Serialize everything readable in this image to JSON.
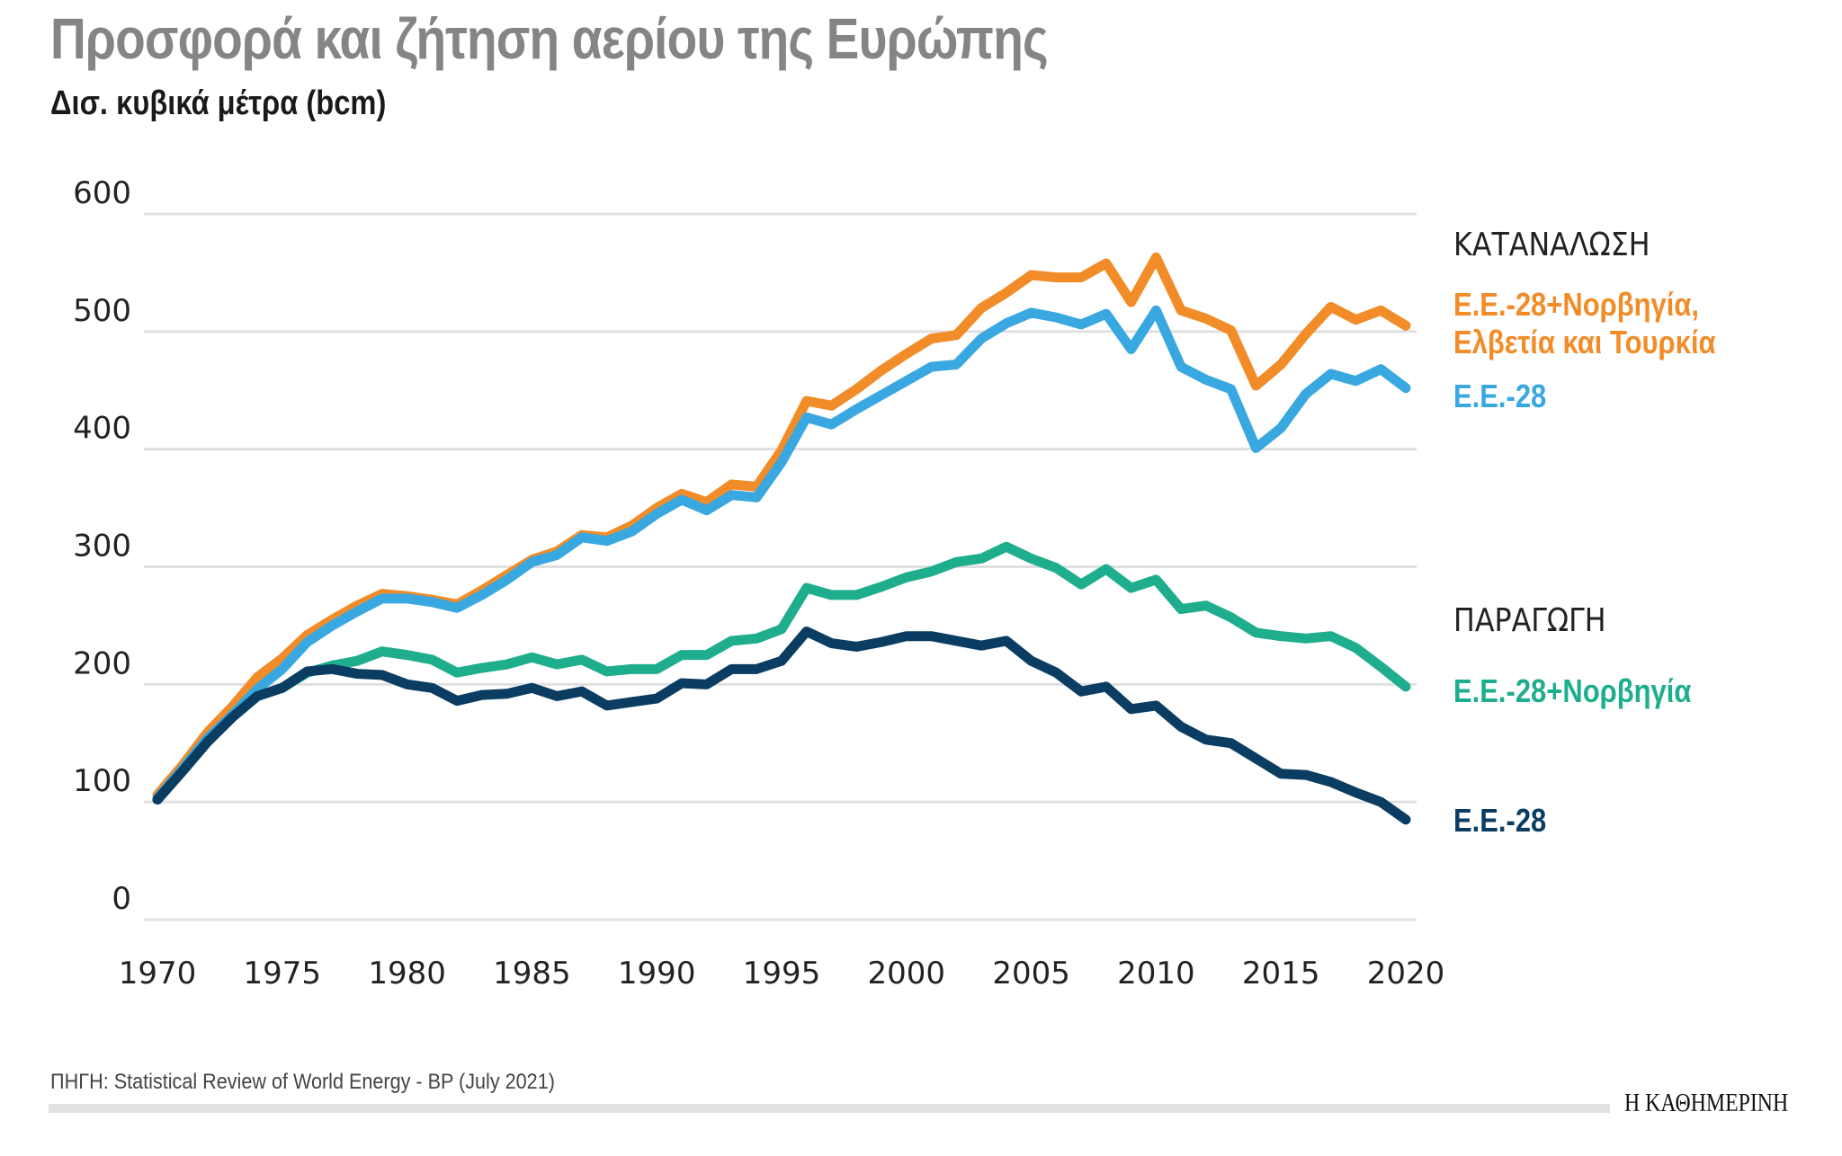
{
  "title": "Προσφορά και ζήτηση αερίου της Ευρώπης",
  "subtitle": "Δισ. κυβικά μέτρα (bcm)",
  "source": "ΠΗΓΗ: Statistical Review of World Energy - BP (July 2021)",
  "logo": "Η ΚΑΘΗΜΕΡΙΝΗ",
  "chart_data": {
    "type": "line",
    "title": "Προσφορά και ζήτηση αερίου της Ευρώπης",
    "ylabel": "Δισ. κυβικά μέτρα (bcm)",
    "xlim": [
      1970,
      2020
    ],
    "ylim": [
      0,
      600
    ],
    "yticks": [
      0,
      100,
      200,
      300,
      400,
      500,
      600
    ],
    "xticks": [
      1970,
      1975,
      1980,
      1985,
      1990,
      1995,
      2000,
      2005,
      2010,
      2015,
      2020
    ],
    "grid": "horizontal",
    "legend": "right",
    "groups": {
      "consumption": "ΚΑΤΑΝΑΛΩΣΗ",
      "production": "ΠΑΡΑΓΩΓΗ"
    },
    "x": [
      1970,
      1971,
      1972,
      1973,
      1974,
      1975,
      1976,
      1977,
      1978,
      1979,
      1980,
      1981,
      1982,
      1983,
      1984,
      1985,
      1986,
      1987,
      1988,
      1989,
      1990,
      1991,
      1992,
      1993,
      1994,
      1995,
      1996,
      1997,
      1998,
      1999,
      2000,
      2001,
      2002,
      2003,
      2004,
      2005,
      2006,
      2007,
      2008,
      2009,
      2010,
      2011,
      2012,
      2013,
      2014,
      2015,
      2016,
      2017,
      2018,
      2019,
      2020
    ],
    "series": [
      {
        "name": "Ε.Ε.-28+Νορβηγία, Ελβετία και Τουρκία",
        "name_lines": [
          "Ε.Ε.-28+Νορβηγία,",
          "Ελβετία και Τουρκία"
        ],
        "group": "consumption",
        "color": "#f28c28",
        "values": [
          106,
          131,
          159,
          181,
          206,
          222,
          242,
          255,
          267,
          277,
          275,
          272,
          268,
          280,
          293,
          306,
          313,
          327,
          325,
          335,
          350,
          362,
          355,
          370,
          368,
          399,
          441,
          437,
          451,
          467,
          481,
          494,
          497,
          520,
          533,
          548,
          546,
          546,
          558,
          525,
          563,
          518,
          511,
          501,
          454,
          472,
          498,
          521,
          510,
          518,
          505
        ]
      },
      {
        "name": "Ε.Ε.-28",
        "group": "consumption",
        "color": "#3aa8e0",
        "values": [
          103,
          128,
          154,
          174,
          196,
          213,
          236,
          250,
          262,
          273,
          273,
          270,
          265,
          276,
          289,
          304,
          310,
          325,
          322,
          330,
          345,
          357,
          348,
          361,
          359,
          389,
          427,
          421,
          434,
          446,
          458,
          470,
          472,
          494,
          507,
          516,
          512,
          506,
          515,
          485,
          518,
          470,
          459,
          451,
          401,
          418,
          447,
          464,
          458,
          468,
          452
        ]
      },
      {
        "name": "Ε.Ε.-28+Νορβηγία",
        "group": "production",
        "color": "#1fae8d",
        "values": [
          102,
          126,
          151,
          172,
          190,
          197,
          210,
          216,
          220,
          228,
          225,
          221,
          210,
          214,
          217,
          223,
          217,
          221,
          211,
          213,
          213,
          225,
          225,
          237,
          239,
          247,
          282,
          276,
          276,
          283,
          291,
          296,
          304,
          307,
          317,
          307,
          299,
          285,
          298,
          282,
          289,
          264,
          267,
          257,
          244,
          241,
          239,
          241,
          231,
          215,
          198
        ]
      },
      {
        "name": "Ε.Ε.-28",
        "group": "production",
        "color": "#0b3d62",
        "values": [
          102,
          126,
          151,
          172,
          190,
          197,
          211,
          213,
          209,
          208,
          200,
          197,
          186,
          191,
          192,
          197,
          190,
          194,
          182,
          185,
          188,
          201,
          200,
          213,
          213,
          220,
          245,
          235,
          232,
          236,
          241,
          241,
          237,
          233,
          237,
          220,
          210,
          194,
          198,
          179,
          182,
          164,
          153,
          150,
          137,
          124,
          123,
          117,
          108,
          100,
          85
        ]
      }
    ]
  }
}
